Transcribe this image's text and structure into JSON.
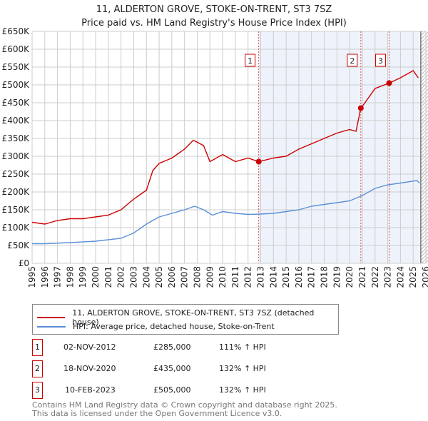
{
  "title": "11, ALDERTON GROVE, STOKE-ON-TRENT, ST3 7SZ",
  "subtitle": "Price paid vs. HM Land Registry's House Price Index (HPI)",
  "chart_data": {
    "type": "line",
    "ylim": [
      0,
      650000
    ],
    "xlim": [
      1995,
      2026
    ],
    "yticks": [
      {
        "v": 0,
        "l": "£0"
      },
      {
        "v": 50000,
        "l": "£50K"
      },
      {
        "v": 100000,
        "l": "£100K"
      },
      {
        "v": 150000,
        "l": "£150K"
      },
      {
        "v": 200000,
        "l": "£200K"
      },
      {
        "v": 250000,
        "l": "£250K"
      },
      {
        "v": 300000,
        "l": "£300K"
      },
      {
        "v": 350000,
        "l": "£350K"
      },
      {
        "v": 400000,
        "l": "£400K"
      },
      {
        "v": 450000,
        "l": "£450K"
      },
      {
        "v": 500000,
        "l": "£500K"
      },
      {
        "v": 550000,
        "l": "£550K"
      },
      {
        "v": 600000,
        "l": "£600K"
      },
      {
        "v": 650000,
        "l": "£650K"
      }
    ],
    "xticks": [
      "1995",
      "1996",
      "1997",
      "1998",
      "1999",
      "2000",
      "2001",
      "2002",
      "2003",
      "2004",
      "2005",
      "2006",
      "2007",
      "2008",
      "2009",
      "2010",
      "2011",
      "2012",
      "2013",
      "2014",
      "2015",
      "2016",
      "2017",
      "2018",
      "2019",
      "2020",
      "2021",
      "2022",
      "2023",
      "2024",
      "2025",
      "2026"
    ],
    "series": [
      {
        "name": "11, ALDERTON GROVE, STOKE-ON-TRENT, ST3 7SZ (detached house)",
        "color": "#cc0000",
        "x": [
          1995,
          1996,
          1997,
          1998,
          1999,
          2000,
          2001,
          2002,
          2003,
          2004,
          2004.5,
          2005,
          2006,
          2007,
          2007.7,
          2008.5,
          2009,
          2010,
          2011,
          2012,
          2012.84,
          2014,
          2015,
          2016,
          2017,
          2018,
          2019,
          2020,
          2020.5,
          2020.88,
          2021,
          2022,
          2023.11,
          2024,
          2025,
          2025.4
        ],
        "y": [
          115000,
          110000,
          120000,
          125000,
          125000,
          130000,
          135000,
          150000,
          180000,
          205000,
          260000,
          280000,
          295000,
          320000,
          345000,
          330000,
          285000,
          305000,
          285000,
          295000,
          285000,
          295000,
          300000,
          320000,
          335000,
          350000,
          365000,
          375000,
          370000,
          435000,
          440000,
          490000,
          505000,
          520000,
          540000,
          520000
        ]
      },
      {
        "name": "HPI: Average price, detached house, Stoke-on-Trent",
        "color": "#5b8fd6",
        "x": [
          1995,
          1996,
          1998,
          2000,
          2002,
          2003,
          2004,
          2005,
          2006,
          2007,
          2007.8,
          2008.5,
          2009.2,
          2010,
          2011,
          2012,
          2013,
          2014,
          2015,
          2016,
          2017,
          2018,
          2019,
          2020,
          2021,
          2022,
          2023,
          2024,
          2025.3,
          2025.5
        ],
        "y": [
          55000,
          55000,
          58000,
          62000,
          70000,
          85000,
          110000,
          130000,
          140000,
          150000,
          160000,
          150000,
          135000,
          145000,
          140000,
          137000,
          138000,
          140000,
          145000,
          150000,
          160000,
          165000,
          170000,
          175000,
          190000,
          210000,
          220000,
          225000,
          232000,
          225000
        ]
      }
    ],
    "sales": [
      {
        "label": "1",
        "x": 2012.84,
        "y": 285000
      },
      {
        "label": "2",
        "x": 2020.88,
        "y": 435000
      },
      {
        "label": "3",
        "x": 2023.11,
        "y": 505000
      }
    ]
  },
  "legend": {
    "red": "11, ALDERTON GROVE, STOKE-ON-TRENT, ST3 7SZ (detached house)",
    "blue": "HPI: Average price, detached house, Stoke-on-Trent"
  },
  "rows": [
    {
      "n": "1",
      "date": "02-NOV-2012",
      "price": "£285,000",
      "hpi": "111% ↑ HPI"
    },
    {
      "n": "2",
      "date": "18-NOV-2020",
      "price": "£435,000",
      "hpi": "132% ↑ HPI"
    },
    {
      "n": "3",
      "date": "10-FEB-2023",
      "price": "£505,000",
      "hpi": "132% ↑ HPI"
    }
  ],
  "footer": [
    "Contains HM Land Registry data © Crown copyright and database right 2025.",
    "This data is licensed under the Open Government Licence v3.0."
  ]
}
